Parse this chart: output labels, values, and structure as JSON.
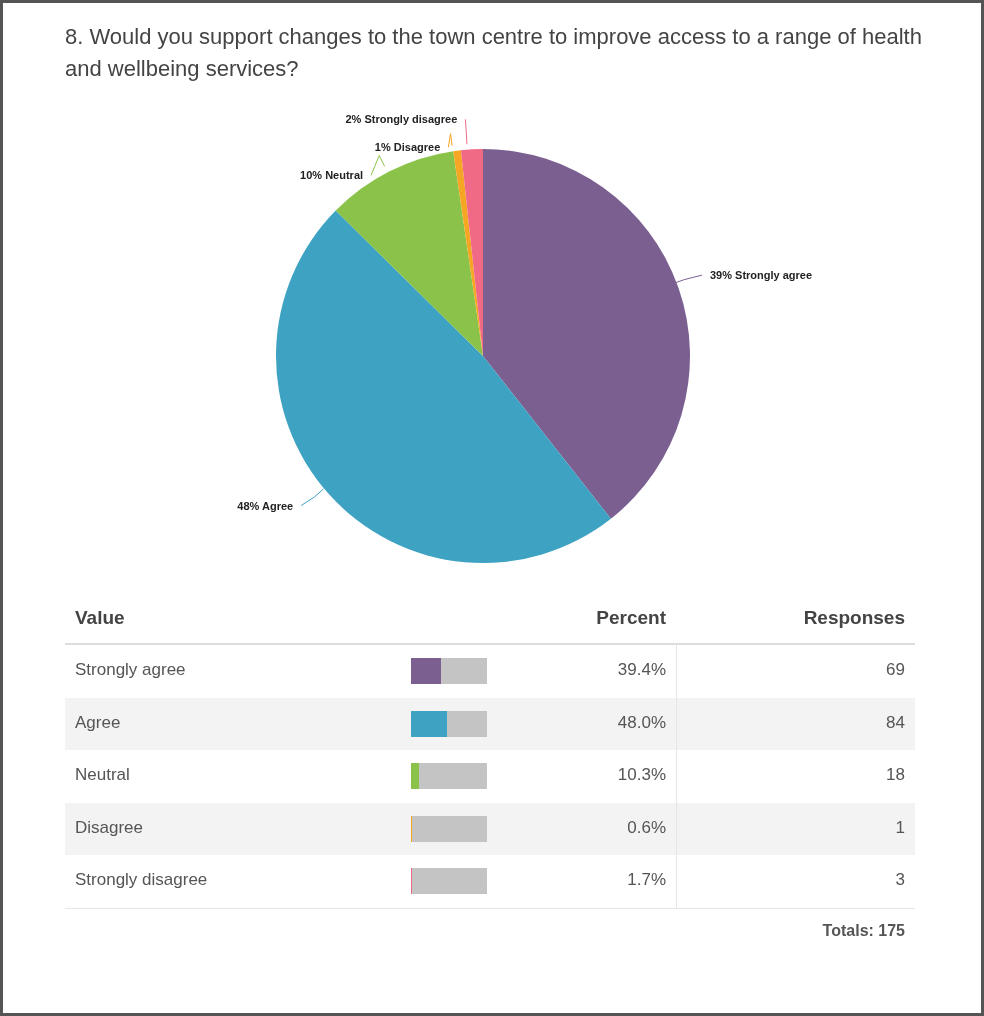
{
  "chart_data": {
    "type": "pie",
    "title": "8. Would you support changes to the town centre to improve access to a range of health and wellbeing services?",
    "categories": [
      "Strongly agree",
      "Agree",
      "Neutral",
      "Disagree",
      "Strongly disagree"
    ],
    "values": [
      39.4,
      48.0,
      10.3,
      0.6,
      1.7
    ],
    "colors": [
      "#7b5f91",
      "#3ea2c2",
      "#8bc34a",
      "#f5a623",
      "#f06a85"
    ],
    "value_labels": [
      "39%",
      "48%",
      "10%",
      "1%",
      "2%"
    ],
    "annotations": [
      "Value",
      "Percent",
      "Responses",
      "39.4%",
      "48.0%",
      "10.3%",
      "0.6%",
      "1.7%",
      "69",
      "84",
      "18",
      "1",
      "3",
      "Totals: 175"
    ]
  }
}
